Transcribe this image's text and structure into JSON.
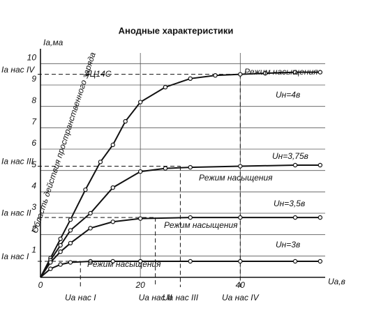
{
  "chart_data": {
    "type": "line",
    "title": "Анодные характеристики",
    "x_label": "Uа,в",
    "y_label": "Iа,ма",
    "xlim": [
      0,
      57
    ],
    "ylim": [
      0,
      10.5
    ],
    "xticks": [
      0,
      20,
      40
    ],
    "yticks": [
      1,
      2,
      3,
      4,
      5,
      6,
      7,
      8,
      9,
      10
    ],
    "grid": true,
    "color": "#111111",
    "series": [
      {
        "name": "Uн=4в",
        "x": [
          0,
          2,
          4,
          6,
          9,
          12,
          14.5,
          17,
          20,
          25,
          30,
          35,
          40,
          45,
          51,
          56
        ],
        "values": [
          0,
          0.9,
          1.8,
          2.7,
          4.1,
          5.4,
          6.2,
          7.3,
          8.2,
          8.9,
          9.3,
          9.45,
          9.5,
          9.55,
          9.6,
          9.6
        ]
      },
      {
        "name": "Uн=3,75в",
        "x": [
          0,
          2,
          4,
          6,
          10,
          14.5,
          20,
          25,
          30,
          40,
          51,
          56
        ],
        "values": [
          0,
          0.8,
          1.5,
          2.2,
          3.0,
          4.2,
          4.95,
          5.1,
          5.15,
          5.2,
          5.25,
          5.25
        ]
      },
      {
        "name": "Uн=3,5в",
        "x": [
          0,
          2,
          4,
          6,
          10,
          14.5,
          20,
          30,
          40,
          51,
          56
        ],
        "values": [
          0,
          0.7,
          1.2,
          1.6,
          2.3,
          2.6,
          2.75,
          2.8,
          2.8,
          2.8,
          2.8
        ]
      },
      {
        "name": "Uн=3в",
        "x": [
          0,
          2,
          4,
          6,
          10,
          14.5,
          20,
          30,
          40,
          51,
          56
        ],
        "values": [
          0,
          0.4,
          0.6,
          0.7,
          0.75,
          0.75,
          0.75,
          0.75,
          0.75,
          0.75,
          0.75
        ]
      }
    ],
    "saturation": [
      {
        "x": 8,
        "y": 0.75,
        "x_label": "Uа нас I",
        "y_label": "Iа нас I"
      },
      {
        "x": 23,
        "y": 2.8,
        "x_label": "Uа нас II",
        "y_label": "Iа нас II"
      },
      {
        "x": 28,
        "y": 5.2,
        "x_label": "Uа нас III",
        "y_label": "Iа нас III"
      },
      {
        "x": 40,
        "y": 9.5,
        "x_label": "Uа нас IV",
        "y_label": "Iа нас IV"
      }
    ],
    "annotations": [
      "4Ц14С",
      "Режим насыщения",
      "Режим насыщения",
      "Режим насыщения",
      "Режим насыщения",
      "Область действия пространственного заряда"
    ]
  }
}
